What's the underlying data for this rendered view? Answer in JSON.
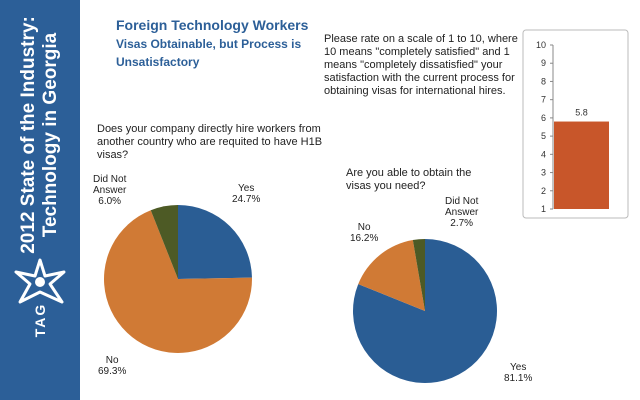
{
  "sidebar": {
    "line1": "2012 State of the Industry:",
    "line2": "Technology in Georgia",
    "logo_text": "TAG",
    "logo_icon": "tag-star-logo"
  },
  "header": {
    "title": "Foreign Technology Workers",
    "subtitle_line1": "Visas Obtainable, but Process is",
    "subtitle_line2": "Unsatisfactory"
  },
  "colors": {
    "sidebar": "#2c5f98",
    "blue": "#2a5d94",
    "orange": "#d07a35",
    "olive": "#4d5a25",
    "bar": "#c8562a"
  },
  "rating": {
    "question_lines": [
      "Please rate on a scale of 1 to 10, where",
      "10 means \"completely satisfied\" and 1",
      "means \"completely dissatisfied\" your",
      "satisfaction with the current process for",
      "obtaining visas for international hires."
    ]
  },
  "q1": {
    "question_lines": [
      "Does your company directly hire workers from",
      "another country who are requited to have H1B",
      "visas?"
    ]
  },
  "q2": {
    "question_lines": [
      "Are you able to obtain the",
      "visas you need?"
    ]
  },
  "chart_data": [
    {
      "type": "pie",
      "categories": [
        "Yes",
        "No",
        "Did Not Answer"
      ],
      "values": [
        24.7,
        69.3,
        6.0
      ],
      "labels": [
        [
          "Yes",
          "24.7%"
        ],
        [
          "No",
          "69.3%"
        ],
        [
          "Did Not",
          "Answer",
          "6.0%"
        ]
      ],
      "colors": [
        "#2a5d94",
        "#d07a35",
        "#4d5a25"
      ]
    },
    {
      "type": "pie",
      "categories": [
        "Yes",
        "No",
        "Did Not Answer"
      ],
      "values": [
        81.1,
        16.2,
        2.7
      ],
      "labels": [
        [
          "Yes",
          "81.1%"
        ],
        [
          "No",
          "16.2%"
        ],
        [
          "Did Not",
          "Answer",
          "2.7%"
        ]
      ],
      "colors": [
        "#2a5d94",
        "#d07a35",
        "#4d5a25"
      ]
    },
    {
      "type": "bar",
      "categories": [
        ""
      ],
      "values": [
        5.8
      ],
      "data_label": "5.8",
      "ylim": [
        1,
        10
      ],
      "yticks": [
        "1",
        "2",
        "3",
        "4",
        "5",
        "6",
        "7",
        "8",
        "9",
        "10"
      ],
      "color": "#c8562a"
    }
  ]
}
